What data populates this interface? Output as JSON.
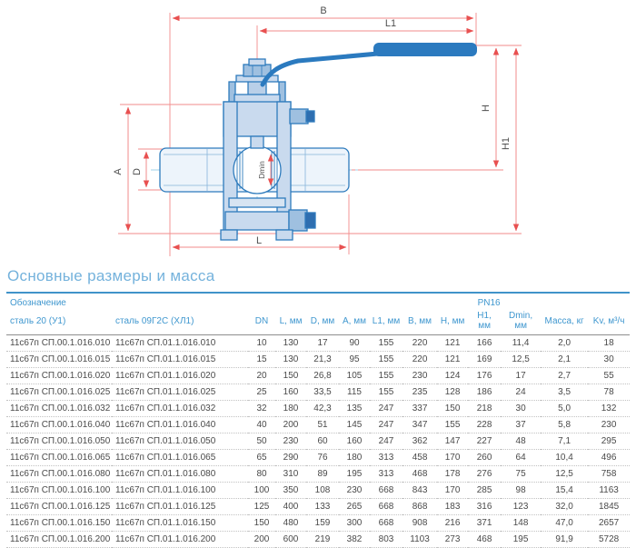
{
  "drawing": {
    "labels": {
      "B": "B",
      "L1": "L1",
      "H": "H",
      "H1": "H1",
      "A": "A",
      "D": "D",
      "Dmin": "Dmin",
      "L": "L"
    },
    "colors": {
      "dimension_line": "#f28b8b",
      "arrow": "#e85050",
      "body_fill": "#c9daee",
      "body_stroke": "#2e7bbd",
      "handle_blue": "#2b7abf",
      "centerline": "#9fd0e8"
    }
  },
  "section_title": "Основные размеры и масса",
  "table": {
    "group_headers": {
      "designation": "Обозначение",
      "pn": "PN16"
    },
    "columns": [
      "сталь 20 (У1)",
      "сталь 09Г2С (ХЛ1)",
      "DN",
      "L, мм",
      "D, мм",
      "A, мм",
      "L1, мм",
      "B, мм",
      "H, мм",
      "H1, мм",
      "Dmin, мм",
      "Масса, кг",
      "Kv, м³/ч"
    ],
    "rows": [
      [
        "11с67п СП.00.1.016.010",
        "11с67п СП.01.1.016.010",
        "10",
        "130",
        "17",
        "90",
        "155",
        "220",
        "121",
        "166",
        "11,4",
        "2,0",
        "18"
      ],
      [
        "11с67п СП.00.1.016.015",
        "11с67п СП.01.1.016.015",
        "15",
        "130",
        "21,3",
        "95",
        "155",
        "220",
        "121",
        "169",
        "12,5",
        "2,1",
        "30"
      ],
      [
        "11с67п СП.00.1.016.020",
        "11с67п СП.01.1.016.020",
        "20",
        "150",
        "26,8",
        "105",
        "155",
        "230",
        "124",
        "176",
        "17",
        "2,7",
        "55"
      ],
      [
        "11с67п СП.00.1.016.025",
        "11с67п СП.01.1.016.025",
        "25",
        "160",
        "33,5",
        "115",
        "155",
        "235",
        "128",
        "186",
        "24",
        "3,5",
        "78"
      ],
      [
        "11с67п СП.00.1.016.032",
        "11с67п СП.01.1.016.032",
        "32",
        "180",
        "42,3",
        "135",
        "247",
        "337",
        "150",
        "218",
        "30",
        "5,0",
        "132"
      ],
      [
        "11с67п СП.00.1.016.040",
        "11с67п СП.01.1.016.040",
        "40",
        "200",
        "51",
        "145",
        "247",
        "347",
        "155",
        "228",
        "37",
        "5,8",
        "230"
      ],
      [
        "11с67п СП.00.1.016.050",
        "11с67п СП.01.1.016.050",
        "50",
        "230",
        "60",
        "160",
        "247",
        "362",
        "147",
        "227",
        "48",
        "7,1",
        "295"
      ],
      [
        "11с67п СП.00.1.016.065",
        "11с67п СП.01.1.016.065",
        "65",
        "290",
        "76",
        "180",
        "313",
        "458",
        "170",
        "260",
        "64",
        "10,4",
        "496"
      ],
      [
        "11с67п СП.00.1.016.080",
        "11с67п СП.01.1.016.080",
        "80",
        "310",
        "89",
        "195",
        "313",
        "468",
        "178",
        "276",
        "75",
        "12,5",
        "758"
      ],
      [
        "11с67п СП.00.1.016.100",
        "11с67п СП.01.1.016.100",
        "100",
        "350",
        "108",
        "230",
        "668",
        "843",
        "170",
        "285",
        "98",
        "15,4",
        "1163"
      ],
      [
        "11с67п СП.00.1.016.125",
        "11с67п СП.01.1.016.125",
        "125",
        "400",
        "133",
        "265",
        "668",
        "868",
        "183",
        "316",
        "123",
        "32,0",
        "1845"
      ],
      [
        "11с67п СП.00.1.016.150",
        "11с67п СП.01.1.016.150",
        "150",
        "480",
        "159",
        "300",
        "668",
        "908",
        "216",
        "371",
        "148",
        "47,0",
        "2657"
      ],
      [
        "11с67п СП.00.1.016.200",
        "11с67п СП.01.1.016.200",
        "200",
        "600",
        "219",
        "382",
        "803",
        "1103",
        "273",
        "468",
        "195",
        "91,9",
        "5728"
      ]
    ]
  }
}
